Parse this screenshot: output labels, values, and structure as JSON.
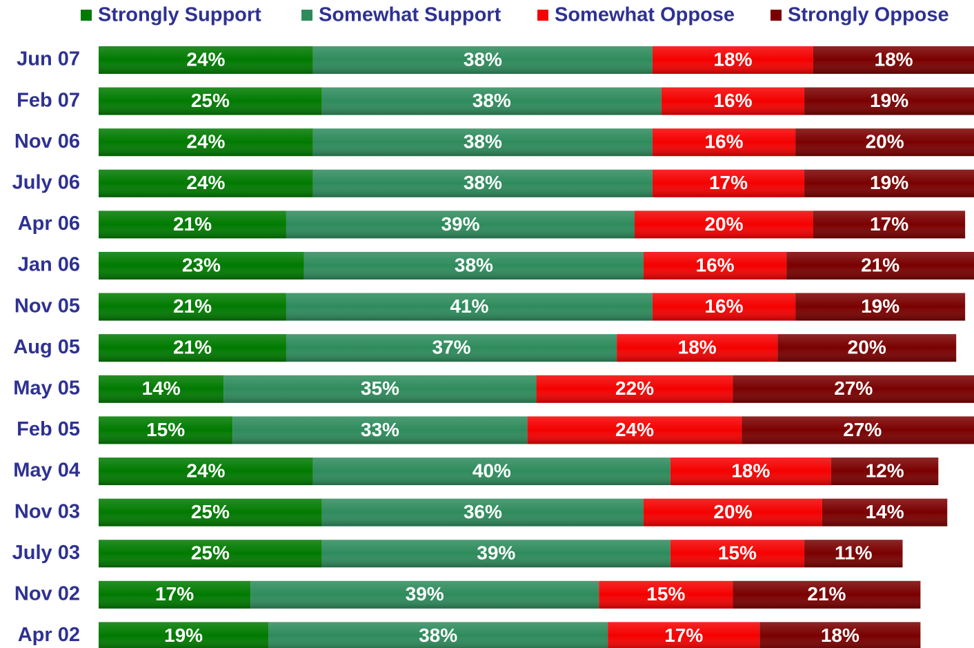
{
  "chart_data": {
    "type": "stacked-bar-horizontal",
    "categories": [
      "Jun 07",
      "Feb 07",
      "Nov 06",
      "July 06",
      "Apr 06",
      "Jan 06",
      "Nov 05",
      "Aug 05",
      "May 05",
      "Feb 05",
      "May 04",
      "Nov 03",
      "July 03",
      "Nov 02",
      "Apr 02"
    ],
    "series": [
      {
        "name": "Strongly Support",
        "color": "#007a00",
        "values": [
          24,
          25,
          24,
          24,
          21,
          23,
          21,
          21,
          14,
          15,
          24,
          25,
          25,
          17,
          19
        ],
        "value_labels": [
          "24%",
          "25%",
          "24%",
          "24%",
          "21%",
          "23%",
          "21%",
          "21%",
          "14%",
          "15%",
          "24%",
          "25%",
          "25%",
          "17%",
          "19%"
        ]
      },
      {
        "name": "Somewhat Support",
        "color": "#2e8b5c",
        "values": [
          38,
          38,
          38,
          38,
          39,
          38,
          41,
          37,
          35,
          33,
          40,
          36,
          39,
          39,
          38
        ],
        "value_labels": [
          "38%",
          "38%",
          "38%",
          "38%",
          "39%",
          "38%",
          "41%",
          "37%",
          "35%",
          "33%",
          "40%",
          "36%",
          "39%",
          "39%",
          "38%"
        ]
      },
      {
        "name": "Somewhat Oppose",
        "color": "#f50000",
        "values": [
          18,
          16,
          16,
          17,
          20,
          16,
          16,
          18,
          22,
          24,
          18,
          20,
          15,
          15,
          17
        ],
        "value_labels": [
          "18%",
          "16%",
          "16%",
          "17%",
          "20%",
          "16%",
          "16%",
          "18%",
          "22%",
          "24%",
          "18%",
          "20%",
          "15%",
          "15%",
          "17%"
        ]
      },
      {
        "name": "Strongly Oppose",
        "color": "#7a0000",
        "values": [
          18,
          19,
          20,
          19,
          17,
          21,
          19,
          20,
          27,
          27,
          12,
          14,
          11,
          21,
          18
        ],
        "value_labels": [
          "18%",
          "19%",
          "20%",
          "19%",
          "17%",
          "21%",
          "19%",
          "20%",
          "27%",
          "27%",
          "12%",
          "14%",
          "11%",
          "21%",
          "18%"
        ]
      }
    ],
    "legend": "top"
  }
}
